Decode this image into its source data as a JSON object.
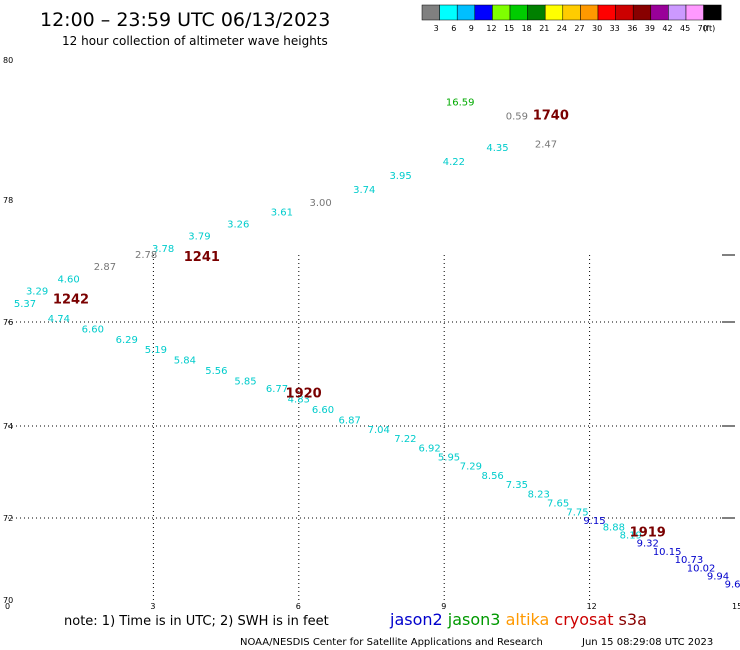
{
  "header": {
    "title": "12:00 – 23:59 UTC 06/13/2023",
    "subtitle": "12 hour collection of altimeter wave heights"
  },
  "legend": {
    "colors": [
      "#808080",
      "#00ffff",
      "#00bfff",
      "#0000ff",
      "#7fff00",
      "#00cc00",
      "#008000",
      "#ffff00",
      "#ffcc00",
      "#ff9900",
      "#ff0000",
      "#cc0000",
      "#880000",
      "#990099",
      "#cc99ff",
      "#ff99ff",
      "#000000"
    ],
    "labels": [
      "3",
      "6",
      "9",
      "12",
      "15",
      "18",
      "21",
      "24",
      "27",
      "30",
      "33",
      "36",
      "39",
      "42",
      "45",
      "70"
    ],
    "unit": "(ft)"
  },
  "chart_data": {
    "type": "scatter",
    "xlim": [
      0,
      15
    ],
    "ylim": [
      70,
      80
    ],
    "x_ticks": [
      0,
      3,
      6,
      9,
      12,
      15
    ],
    "y_ticks": [
      80,
      78,
      76,
      74,
      72,
      70
    ],
    "y_ticks_tagged": [
      76,
      74,
      72
    ],
    "grid": true,
    "points": [
      {
        "x": 9.33,
        "y": 79.35,
        "label": "16.59",
        "color": "#00aa00"
      },
      {
        "x": 10.5,
        "y": 79.15,
        "label": "0.59",
        "color": "#777777"
      },
      {
        "x": 11.1,
        "y": 78.75,
        "label": "2.47",
        "color": "#777777"
      },
      {
        "x": 10.1,
        "y": 78.7,
        "label": "4.35",
        "color": "#00cccc"
      },
      {
        "x": 9.2,
        "y": 78.5,
        "label": "4.22",
        "color": "#00cccc"
      },
      {
        "x": 8.1,
        "y": 78.3,
        "label": "3.95",
        "color": "#00cccc"
      },
      {
        "x": 7.35,
        "y": 78.1,
        "label": "3.74",
        "color": "#00cccc"
      },
      {
        "x": 6.45,
        "y": 77.9,
        "label": "3.00",
        "color": "#777777"
      },
      {
        "x": 5.65,
        "y": 77.75,
        "label": "3.61",
        "color": "#00cccc"
      },
      {
        "x": 4.75,
        "y": 77.55,
        "label": "3.26",
        "color": "#00cccc"
      },
      {
        "x": 3.95,
        "y": 77.35,
        "label": "3.79",
        "color": "#00cccc"
      },
      {
        "x": 3.2,
        "y": 77.15,
        "label": "3.78",
        "color": "#00cccc"
      },
      {
        "x": 2.85,
        "y": 77.05,
        "label": "2.78",
        "color": "#777777"
      },
      {
        "x": 2.0,
        "y": 76.85,
        "label": "2.87",
        "color": "#777777"
      },
      {
        "x": 1.25,
        "y": 76.65,
        "label": "4.60",
        "color": "#00cccc"
      },
      {
        "x": 0.6,
        "y": 76.45,
        "label": "3.29",
        "color": "#00cccc"
      },
      {
        "x": 0.35,
        "y": 76.25,
        "label": "5.37",
        "color": "#00cccc"
      },
      {
        "x": 1.05,
        "y": 76.0,
        "label": "4.74",
        "color": "#00cccc"
      },
      {
        "x": 1.75,
        "y": 75.8,
        "label": "6.60",
        "color": "#00cccc"
      },
      {
        "x": 2.45,
        "y": 75.6,
        "label": "6.29",
        "color": "#00cccc"
      },
      {
        "x": 3.05,
        "y": 75.4,
        "label": "5.19",
        "color": "#00cccc"
      },
      {
        "x": 3.65,
        "y": 75.2,
        "label": "5.84",
        "color": "#00cccc"
      },
      {
        "x": 4.3,
        "y": 75.0,
        "label": "5.56",
        "color": "#00cccc"
      },
      {
        "x": 4.9,
        "y": 74.8,
        "label": "5.85",
        "color": "#00cccc"
      },
      {
        "x": 5.55,
        "y": 74.65,
        "label": "6.77",
        "color": "#00cccc"
      },
      {
        "x": 6.0,
        "y": 74.45,
        "label": "4.83",
        "color": "#00cccc"
      },
      {
        "x": 6.5,
        "y": 74.25,
        "label": "6.60",
        "color": "#00cccc"
      },
      {
        "x": 7.05,
        "y": 74.05,
        "label": "6.87",
        "color": "#00cccc"
      },
      {
        "x": 7.65,
        "y": 73.85,
        "label": "7.04",
        "color": "#00cccc"
      },
      {
        "x": 8.2,
        "y": 73.65,
        "label": "7.22",
        "color": "#00cccc"
      },
      {
        "x": 8.7,
        "y": 73.45,
        "label": "6.92",
        "color": "#00cccc"
      },
      {
        "x": 9.1,
        "y": 73.25,
        "label": "5.95",
        "color": "#00cccc"
      },
      {
        "x": 9.55,
        "y": 73.05,
        "label": "7.29",
        "color": "#00cccc"
      },
      {
        "x": 10.0,
        "y": 72.85,
        "label": "8.56",
        "color": "#00cccc"
      },
      {
        "x": 10.5,
        "y": 72.65,
        "label": "7.35",
        "color": "#00cccc"
      },
      {
        "x": 10.95,
        "y": 72.45,
        "label": "8.23",
        "color": "#00cccc"
      },
      {
        "x": 11.35,
        "y": 72.25,
        "label": "7.65",
        "color": "#00cccc"
      },
      {
        "x": 11.75,
        "y": 72.05,
        "label": "7.75",
        "color": "#00cccc"
      },
      {
        "x": 12.1,
        "y": 71.85,
        "label": "9.15",
        "color": "#0000cc"
      },
      {
        "x": 12.5,
        "y": 71.7,
        "label": "8.88",
        "color": "#00cccc"
      },
      {
        "x": 12.85,
        "y": 71.5,
        "label": "8.19",
        "color": "#00cccc"
      },
      {
        "x": 13.2,
        "y": 71.3,
        "label": "9.32",
        "color": "#0000cc"
      },
      {
        "x": 13.6,
        "y": 71.1,
        "label": "10.15",
        "color": "#0000cc"
      },
      {
        "x": 14.05,
        "y": 70.9,
        "label": "10.73",
        "color": "#0000cc"
      },
      {
        "x": 14.3,
        "y": 70.7,
        "label": "10.02",
        "color": "#0000cc"
      },
      {
        "x": 14.65,
        "y": 70.5,
        "label": "9.94",
        "color": "#0000cc"
      },
      {
        "x": 14.95,
        "y": 70.3,
        "label": "9.6",
        "color": "#0000cc"
      }
    ],
    "time_labels": [
      {
        "x": 11.2,
        "y": 79.15,
        "label": "1740"
      },
      {
        "x": 4.0,
        "y": 77.0,
        "label": "1241"
      },
      {
        "x": 1.3,
        "y": 76.3,
        "label": "1242"
      },
      {
        "x": 6.1,
        "y": 74.55,
        "label": "1920"
      },
      {
        "x": 13.2,
        "y": 71.55,
        "label": "1919"
      }
    ]
  },
  "footer": {
    "note": "note: 1) Time is in UTC; 2) SWH is in feet",
    "satellites": [
      {
        "name": "jason2",
        "color": "#0000cc"
      },
      {
        "name": "jason3",
        "color": "#009900"
      },
      {
        "name": "altika",
        "color": "#ff9900"
      },
      {
        "name": "cryosat",
        "color": "#cc0000"
      },
      {
        "name": "s3a",
        "color": "#880000"
      }
    ],
    "credit": "NOAA/NESDIS Center for Satellite Applications and Research",
    "timestamp": "Jun 15 08:29:08 UTC 2023"
  }
}
